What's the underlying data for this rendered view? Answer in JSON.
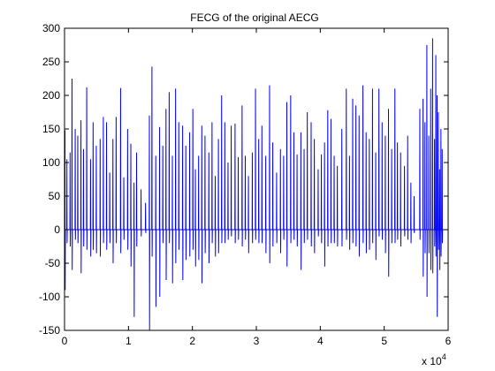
{
  "chart_data": {
    "type": "line",
    "title": "FECG of the original AECG",
    "xlabel": "",
    "ylabel": "",
    "xlim": [
      0,
      60000
    ],
    "ylim": [
      -150,
      300
    ],
    "x_tick_labels": [
      "0",
      "1",
      "2",
      "3",
      "4",
      "5",
      "6"
    ],
    "x_tick_values": [
      0,
      10000,
      20000,
      30000,
      40000,
      50000,
      60000
    ],
    "x_multiplier_label": "x 10",
    "x_multiplier_exponent": "4",
    "y_tick_labels": [
      "-150",
      "-100",
      "-50",
      "0",
      "50",
      "100",
      "150",
      "200",
      "250",
      "300"
    ],
    "y_tick_values": [
      -150,
      -100,
      -50,
      0,
      50,
      100,
      150,
      200,
      250,
      300
    ],
    "grid": false,
    "line_color": "#0000ff",
    "series": [
      {
        "baseline": 0,
        "spikes": [
          [
            100,
            148,
            -90
          ],
          [
            400,
            105,
            -20
          ],
          [
            900,
            115,
            -25
          ],
          [
            1200,
            225,
            -60
          ],
          [
            1700,
            150,
            -15
          ],
          [
            2100,
            140,
            -20
          ],
          [
            2600,
            163,
            -65
          ],
          [
            3000,
            120,
            -25
          ],
          [
            3500,
            212,
            -30
          ],
          [
            4100,
            105,
            -40
          ],
          [
            4500,
            160,
            -30
          ],
          [
            5000,
            125,
            -35
          ],
          [
            5600,
            135,
            -40
          ],
          [
            6100,
            168,
            -20
          ],
          [
            6600,
            160,
            -30
          ],
          [
            7100,
            85,
            -20
          ],
          [
            7600,
            135,
            -50
          ],
          [
            8100,
            168,
            -20
          ],
          [
            8800,
            211,
            -35
          ],
          [
            9300,
            78,
            -15
          ],
          [
            9900,
            150,
            -30
          ],
          [
            10400,
            128,
            -55
          ],
          [
            10900,
            70,
            -130
          ],
          [
            11300,
            115,
            -25
          ],
          [
            12000,
            60,
            -10
          ],
          [
            12700,
            40,
            -5
          ],
          [
            13300,
            170,
            -150
          ],
          [
            13700,
            243,
            -40
          ],
          [
            14300,
            110,
            -115
          ],
          [
            14900,
            153,
            -100
          ],
          [
            15400,
            125,
            -20
          ],
          [
            15900,
            180,
            -75
          ],
          [
            16400,
            205,
            -20
          ],
          [
            16900,
            110,
            -80
          ],
          [
            17400,
            210,
            -50
          ],
          [
            17900,
            160,
            -30
          ],
          [
            18500,
            155,
            -75
          ],
          [
            19000,
            125,
            -45
          ],
          [
            19600,
            145,
            -40
          ],
          [
            20100,
            180,
            -30
          ],
          [
            20500,
            90,
            -55
          ],
          [
            21000,
            110,
            -45
          ],
          [
            21500,
            155,
            -80
          ],
          [
            22000,
            140,
            -35
          ],
          [
            22600,
            115,
            -50
          ],
          [
            23100,
            160,
            -20
          ],
          [
            23600,
            80,
            -40
          ],
          [
            24100,
            135,
            -35
          ],
          [
            24600,
            200,
            -20
          ],
          [
            25100,
            160,
            -20
          ],
          [
            25600,
            100,
            -15
          ],
          [
            26100,
            155,
            -10
          ],
          [
            26700,
            158,
            -20
          ],
          [
            27200,
            108,
            -15
          ],
          [
            27800,
            185,
            -25
          ],
          [
            28300,
            110,
            -15
          ],
          [
            28800,
            80,
            -35
          ],
          [
            29400,
            115,
            -20
          ],
          [
            29900,
            210,
            -15
          ],
          [
            30400,
            135,
            -20
          ],
          [
            30900,
            155,
            -20
          ],
          [
            31500,
            110,
            -35
          ],
          [
            32100,
            215,
            -50
          ],
          [
            32600,
            130,
            -25
          ],
          [
            33200,
            85,
            -20
          ],
          [
            33800,
            120,
            -35
          ],
          [
            34300,
            110,
            -15
          ],
          [
            34800,
            190,
            -55
          ],
          [
            35400,
            200,
            -20
          ],
          [
            35900,
            145,
            -15
          ],
          [
            36400,
            112,
            -25
          ],
          [
            37000,
            145,
            -60
          ],
          [
            37500,
            120,
            -20
          ],
          [
            38000,
            175,
            -15
          ],
          [
            38600,
            160,
            -25
          ],
          [
            39100,
            135,
            -35
          ],
          [
            39700,
            90,
            -10
          ],
          [
            40200,
            112,
            -20
          ],
          [
            40700,
            130,
            -55
          ],
          [
            41200,
            178,
            -25
          ],
          [
            41700,
            165,
            -20
          ],
          [
            42200,
            110,
            -20
          ],
          [
            42700,
            95,
            -25
          ],
          [
            43400,
            150,
            -25
          ],
          [
            44100,
            210,
            -15
          ],
          [
            44600,
            110,
            -30
          ],
          [
            45100,
            195,
            -20
          ],
          [
            45600,
            185,
            -25
          ],
          [
            46100,
            170,
            -40
          ],
          [
            46700,
            215,
            -20
          ],
          [
            47200,
            145,
            -35
          ],
          [
            47700,
            135,
            -30
          ],
          [
            48200,
            210,
            -20
          ],
          [
            48700,
            115,
            -45
          ],
          [
            49200,
            210,
            -10
          ],
          [
            49700,
            160,
            -15
          ],
          [
            50200,
            140,
            -35
          ],
          [
            50700,
            180,
            -70
          ],
          [
            51200,
            120,
            -20
          ],
          [
            51700,
            210,
            -20
          ],
          [
            52100,
            130,
            -15
          ],
          [
            52600,
            115,
            -25
          ],
          [
            53200,
            95,
            -10
          ],
          [
            53700,
            140,
            -15
          ],
          [
            54200,
            70,
            -20
          ],
          [
            54700,
            50,
            -5
          ],
          [
            55600,
            180,
            -15
          ],
          [
            56100,
            195,
            -70
          ],
          [
            56400,
            160,
            -35
          ],
          [
            56700,
            275,
            -100
          ],
          [
            57000,
            140,
            -35
          ],
          [
            57300,
            210,
            -60
          ],
          [
            57600,
            285,
            -65
          ],
          [
            57900,
            135,
            -25
          ],
          [
            58100,
            260,
            -40
          ],
          [
            58300,
            200,
            -130
          ],
          [
            58500,
            175,
            -30
          ],
          [
            58700,
            90,
            -60
          ],
          [
            58900,
            150,
            -40
          ],
          [
            59100,
            120,
            -20
          ]
        ]
      }
    ]
  }
}
